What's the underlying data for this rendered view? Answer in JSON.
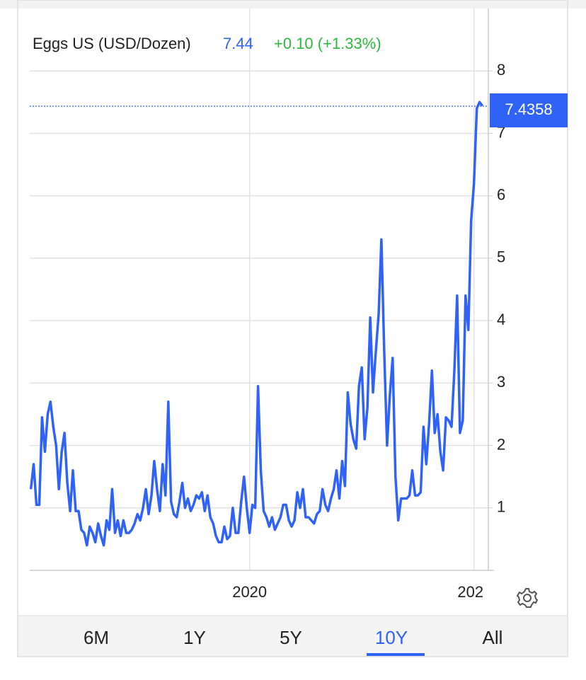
{
  "chart_data": {
    "type": "line",
    "header_price": "7.44",
    "header_change": "+0.10 (+1.33%)",
    "last_value": 7.4358,
    "series": [
      {
        "name": "Eggs US (USD/Dozen)",
        "color": "#2f62f6",
        "x": [
          2015.125,
          2015.1875,
          2015.25,
          2015.3125,
          2015.375,
          2015.4375,
          2015.5,
          2015.5625,
          2015.625,
          2015.6875,
          2015.75,
          2015.8125,
          2015.875,
          2015.9375,
          2016,
          2016.0625,
          2016.125,
          2016.1875,
          2016.25,
          2016.3125,
          2016.375,
          2016.4375,
          2016.5,
          2016.5625,
          2016.625,
          2016.6875,
          2016.75,
          2016.8125,
          2016.875,
          2016.9375,
          2017,
          2017.0625,
          2017.125,
          2017.1875,
          2017.25,
          2017.3125,
          2017.375,
          2017.4375,
          2017.5,
          2017.5625,
          2017.625,
          2017.6875,
          2017.75,
          2017.8125,
          2017.875,
          2017.9375,
          2018,
          2018.0625,
          2018.125,
          2018.1875,
          2018.25,
          2018.3125,
          2018.375,
          2018.4375,
          2018.5,
          2018.5625,
          2018.625,
          2018.6875,
          2018.75,
          2018.8125,
          2018.875,
          2018.9375,
          2019,
          2019.0625,
          2019.125,
          2019.1875,
          2019.25,
          2019.3125,
          2019.375,
          2019.4375,
          2019.5,
          2019.5625,
          2019.625,
          2019.6875,
          2019.75,
          2019.8125,
          2019.875,
          2019.9375,
          2020,
          2020.0625,
          2020.125,
          2020.1875,
          2020.25,
          2020.3125,
          2020.375,
          2020.4375,
          2020.5,
          2020.5625,
          2020.625,
          2020.6875,
          2020.75,
          2020.8125,
          2020.875,
          2020.9375,
          2021,
          2021.0625,
          2021.125,
          2021.1875,
          2021.25,
          2021.3125,
          2021.375,
          2021.4375,
          2021.5,
          2021.5625,
          2021.625,
          2021.6875,
          2021.75,
          2021.8125,
          2021.875,
          2021.9375,
          2022,
          2022.0625,
          2022.125,
          2022.1875,
          2022.25,
          2022.3125,
          2022.375,
          2022.4375,
          2022.5,
          2022.5625,
          2022.625,
          2022.6875,
          2022.75,
          2022.8125,
          2022.875,
          2022.9375,
          2023,
          2023.0625,
          2023.125,
          2023.1875,
          2023.25,
          2023.3125,
          2023.375,
          2023.4375,
          2023.5,
          2023.5625,
          2023.625,
          2023.6875,
          2023.75,
          2023.8125,
          2023.875,
          2023.9375,
          2024,
          2024.0625,
          2024.125,
          2024.1875,
          2024.25,
          2024.3125,
          2024.375,
          2024.4375,
          2024.5,
          2024.5625,
          2024.625,
          2024.6875,
          2024.75,
          2024.8125,
          2024.875,
          2024.9375,
          2025,
          2025.0625,
          2025.125,
          2025.1875
        ],
        "values": [
          1.3,
          1.7,
          1.05,
          1.05,
          2.45,
          1.9,
          2.5,
          2.7,
          2.3,
          2.0,
          1.3,
          1.9,
          2.2,
          1.4,
          0.95,
          1.6,
          0.95,
          0.95,
          0.65,
          0.6,
          0.4,
          0.7,
          0.6,
          0.45,
          0.75,
          0.55,
          0.4,
          0.8,
          0.65,
          1.3,
          0.6,
          0.8,
          0.55,
          0.8,
          0.6,
          0.6,
          0.65,
          0.75,
          0.9,
          0.8,
          1.0,
          1.3,
          0.9,
          1.2,
          1.75,
          1.3,
          0.95,
          1.7,
          1.2,
          2.7,
          1.1,
          0.9,
          0.85,
          1.1,
          1.4,
          1.0,
          1.15,
          0.95,
          1.05,
          1.2,
          1.15,
          1.25,
          0.95,
          1.2,
          0.85,
          0.75,
          0.55,
          0.45,
          0.45,
          0.7,
          0.5,
          0.55,
          1.0,
          0.6,
          0.6,
          1.1,
          1.5,
          1.0,
          0.6,
          1.05,
          1.0,
          2.95,
          1.6,
          0.95,
          0.85,
          0.7,
          0.85,
          0.65,
          0.75,
          0.85,
          1.05,
          1.05,
          0.8,
          0.7,
          0.8,
          1.25,
          1.0,
          1.3,
          0.85,
          0.85,
          0.8,
          0.75,
          0.9,
          0.95,
          1.3,
          1.05,
          0.95,
          1.15,
          1.3,
          1.6,
          1.15,
          1.75,
          1.35,
          2.85,
          2.35,
          2.1,
          1.95,
          2.95,
          3.25,
          2.1,
          2.6,
          4.05,
          2.85,
          3.5,
          4.1,
          5.3,
          3.5,
          2.0,
          2.8,
          3.4,
          1.5,
          0.8,
          1.15,
          1.15,
          1.15,
          1.2,
          1.6,
          1.2,
          1.2,
          1.25,
          2.3,
          1.7,
          2.35,
          3.2,
          2.2,
          2.5,
          1.9,
          1.6,
          2.45,
          2.4,
          2.3,
          3.2,
          4.4,
          2.2,
          2.4,
          4.4,
          3.85,
          5.6,
          6.2,
          7.4,
          7.5,
          7.44
        ]
      }
    ],
    "xlim": [
      2015.1,
      2025.32
    ],
    "xticks": [
      2020,
      {
        "value": 2025,
        "label": "202"
      }
    ],
    "ylim": [
      0,
      9
    ],
    "yticks": [
      1,
      2,
      3,
      4,
      5,
      6,
      7,
      8
    ],
    "grid": true
  },
  "range_buttons": [
    "6M",
    "1Y",
    "5Y",
    "10Y",
    "All"
  ],
  "selected_range": "10Y"
}
